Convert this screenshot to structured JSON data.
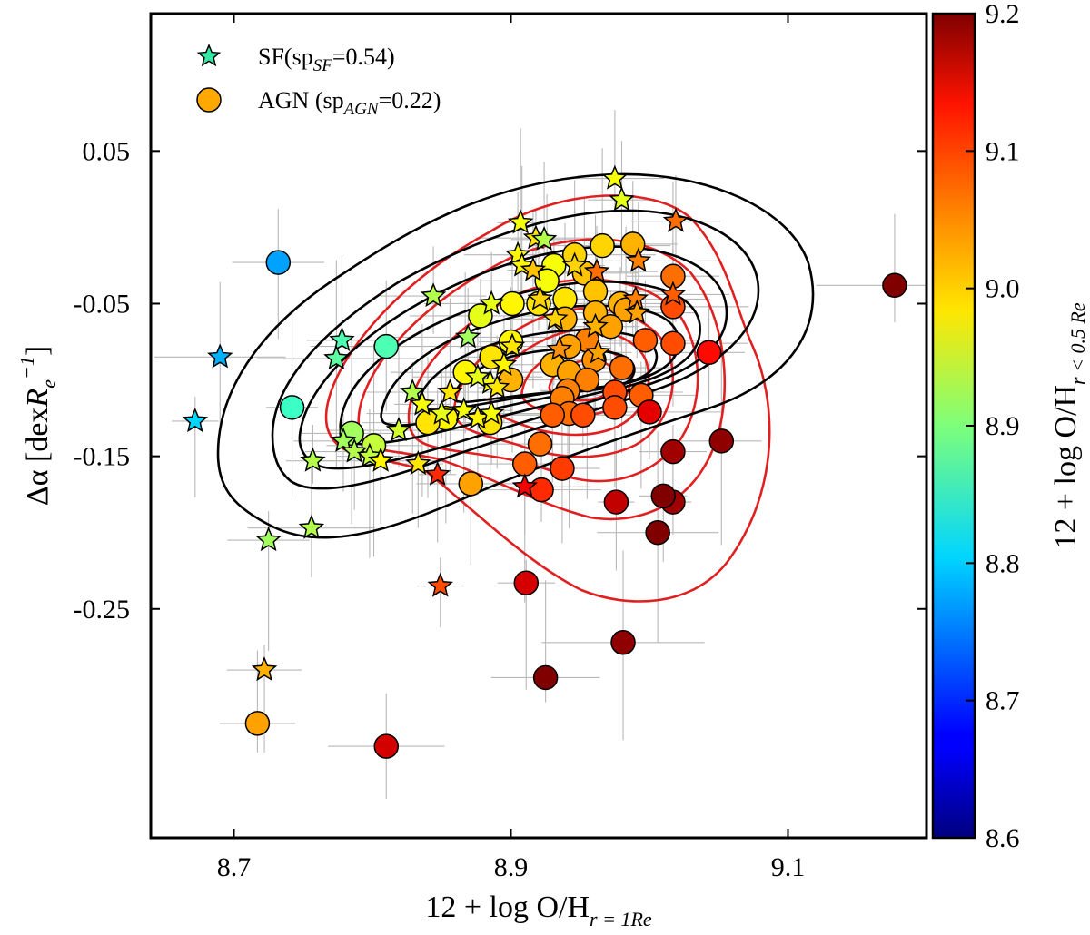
{
  "chart_data": {
    "type": "scatter",
    "xlabel": {
      "main": "12 + log O/H",
      "sub": "r = 1Re"
    },
    "ylabel": {
      "main": "Δα [dex",
      "symbol": "R",
      "sub": "e",
      "sup": "−1",
      "close": "]"
    },
    "xlim": [
      8.64,
      9.2
    ],
    "ylim": [
      -0.4,
      0.14
    ],
    "xticks": [
      8.7,
      8.9,
      9.1
    ],
    "xtick_labels": [
      "8.7",
      "8.9",
      "9.1"
    ],
    "yticks": [
      0.05,
      -0.05,
      -0.15,
      -0.25
    ],
    "ytick_labels": [
      "0.05",
      "-0.05",
      "-0.15",
      "-0.25"
    ],
    "colorbar": {
      "label": {
        "main": "12 + log O/H",
        "sub": "r < 0.5 Re"
      },
      "range": [
        8.6,
        9.2
      ],
      "ticks": [
        8.6,
        8.7,
        8.8,
        8.9,
        9.0,
        9.1,
        9.2
      ],
      "tick_labels": [
        "8.6",
        "8.7",
        "8.8",
        "8.9",
        "9.0",
        "9.1",
        "9.2"
      ],
      "colormap": "jet"
    },
    "legend": {
      "position": "top-left",
      "entries": [
        {
          "marker": "star",
          "color": "#37e8a6",
          "main": "SF(sp",
          "sub": "SF",
          "tail": "=0.54)"
        },
        {
          "marker": "circle",
          "color": "#ffa800",
          "main": "AGN (sp",
          "sub": "AGN",
          "tail": "=0.22)"
        }
      ]
    },
    "series": [
      {
        "name": "SF",
        "marker": "star",
        "points": [
          [
            8.975,
            0.032,
            8.97
          ],
          [
            8.98,
            0.018,
            8.96
          ],
          [
            8.907,
            0.003,
            8.97
          ],
          [
            9.019,
            0.004,
            9.06
          ],
          [
            8.918,
            -0.007,
            8.99
          ],
          [
            8.924,
            -0.008,
            8.93
          ],
          [
            8.905,
            -0.018,
            8.98
          ],
          [
            8.908,
            -0.025,
            8.98
          ],
          [
            8.916,
            -0.028,
            9.01
          ],
          [
            8.946,
            -0.025,
            9.0
          ],
          [
            8.962,
            -0.029,
            9.06
          ],
          [
            8.992,
            -0.022,
            9.05
          ],
          [
            8.844,
            -0.045,
            8.93
          ],
          [
            8.886,
            -0.05,
            8.96
          ],
          [
            8.921,
            -0.047,
            9.0
          ],
          [
            8.99,
            -0.047,
            9.05
          ],
          [
            9.017,
            -0.044,
            9.07
          ],
          [
            8.991,
            -0.056,
            9.03
          ],
          [
            8.932,
            -0.06,
            9.0
          ],
          [
            8.961,
            -0.065,
            9.02
          ],
          [
            8.869,
            -0.072,
            8.92
          ],
          [
            8.901,
            -0.078,
            8.99
          ],
          [
            8.935,
            -0.08,
            9.04
          ],
          [
            8.963,
            -0.082,
            9.03
          ],
          [
            8.778,
            -0.074,
            8.87
          ],
          [
            8.774,
            -0.086,
            8.88
          ],
          [
            8.69,
            -0.085,
            8.78
          ],
          [
            8.895,
            -0.09,
            8.98
          ],
          [
            8.885,
            -0.102,
            8.97
          ],
          [
            8.876,
            -0.098,
            8.96
          ],
          [
            8.89,
            -0.105,
            8.99
          ],
          [
            8.829,
            -0.108,
            8.93
          ],
          [
            8.856,
            -0.108,
            8.99
          ],
          [
            8.866,
            -0.12,
            8.97
          ],
          [
            8.85,
            -0.122,
            8.96
          ],
          [
            8.836,
            -0.116,
            8.97
          ],
          [
            8.876,
            -0.125,
            8.98
          ],
          [
            8.886,
            -0.122,
            8.97
          ],
          [
            8.672,
            -0.127,
            8.8
          ],
          [
            8.819,
            -0.133,
            8.95
          ],
          [
            8.779,
            -0.14,
            8.92
          ],
          [
            8.787,
            -0.147,
            8.93
          ],
          [
            8.798,
            -0.15,
            8.94
          ],
          [
            8.757,
            -0.153,
            8.93
          ],
          [
            8.806,
            -0.153,
            8.98
          ],
          [
            8.833,
            -0.155,
            8.99
          ],
          [
            8.847,
            -0.162,
            9.1
          ],
          [
            8.91,
            -0.17,
            9.13
          ],
          [
            8.756,
            -0.197,
            8.93
          ],
          [
            8.725,
            -0.205,
            8.92
          ],
          [
            8.849,
            -0.235,
            9.08
          ],
          [
            8.722,
            -0.29,
            9.02
          ]
        ]
      },
      {
        "name": "AGN",
        "marker": "circle",
        "points": [
          [
            8.732,
            -0.023,
            8.77
          ],
          [
            8.81,
            -0.078,
            8.87
          ],
          [
            8.742,
            -0.118,
            8.86
          ],
          [
            8.785,
            -0.135,
            8.92
          ],
          [
            8.801,
            -0.143,
            8.94
          ],
          [
            8.988,
            -0.011,
            9.02
          ],
          [
            8.966,
            -0.012,
            9.0
          ],
          [
            8.946,
            -0.018,
            9.0
          ],
          [
            8.931,
            -0.025,
            8.97
          ],
          [
            8.953,
            -0.03,
            9.01
          ],
          [
            8.926,
            -0.035,
            8.97
          ],
          [
            9.017,
            -0.032,
            9.06
          ],
          [
            8.939,
            -0.047,
            8.99
          ],
          [
            8.961,
            -0.042,
            9.01
          ],
          [
            8.979,
            -0.05,
            9.02
          ],
          [
            8.901,
            -0.05,
            8.98
          ],
          [
            8.92,
            -0.05,
            8.99
          ],
          [
            8.961,
            -0.056,
            9.02
          ],
          [
            8.983,
            -0.054,
            9.03
          ],
          [
            9.017,
            -0.052,
            9.08
          ],
          [
            8.878,
            -0.058,
            8.96
          ],
          [
            8.939,
            -0.06,
            9.02
          ],
          [
            8.972,
            -0.065,
            9.03
          ],
          [
            8.955,
            -0.074,
            9.05
          ],
          [
            8.942,
            -0.078,
            9.03
          ],
          [
            8.997,
            -0.074,
            9.07
          ],
          [
            9.017,
            -0.076,
            9.08
          ],
          [
            8.9,
            -0.075,
            8.98
          ],
          [
            8.886,
            -0.085,
            8.99
          ],
          [
            8.96,
            -0.087,
            9.04
          ],
          [
            8.93,
            -0.09,
            9.02
          ],
          [
            8.98,
            -0.092,
            9.06
          ],
          [
            8.867,
            -0.095,
            8.98
          ],
          [
            8.942,
            -0.095,
            9.03
          ],
          [
            8.9,
            -0.1,
            9.02
          ],
          [
            8.955,
            -0.1,
            9.05
          ],
          [
            9.043,
            -0.082,
            9.12
          ],
          [
            8.941,
            -0.107,
            9.05
          ],
          [
            8.975,
            -0.108,
            9.08
          ],
          [
            8.994,
            -0.11,
            9.07
          ],
          [
            8.937,
            -0.112,
            9.05
          ],
          [
            8.975,
            -0.118,
            9.08
          ],
          [
            8.853,
            -0.125,
            8.98
          ],
          [
            8.84,
            -0.128,
            8.99
          ],
          [
            8.885,
            -0.128,
            8.99
          ],
          [
            8.942,
            -0.122,
            9.06
          ],
          [
            8.93,
            -0.123,
            9.07
          ],
          [
            8.952,
            -0.123,
            9.08
          ],
          [
            9.0,
            -0.121,
            9.14
          ],
          [
            9.017,
            -0.147,
            9.18
          ],
          [
            9.052,
            -0.14,
            9.19
          ],
          [
            8.921,
            -0.142,
            9.06
          ],
          [
            8.91,
            -0.155,
            9.07
          ],
          [
            8.937,
            -0.158,
            9.09
          ],
          [
            8.871,
            -0.168,
            9.03
          ],
          [
            8.922,
            -0.172,
            9.1
          ],
          [
            8.976,
            -0.18,
            9.16
          ],
          [
            9.017,
            -0.18,
            9.18
          ],
          [
            9.01,
            -0.176,
            9.2
          ],
          [
            9.006,
            -0.2,
            9.2
          ],
          [
            8.911,
            -0.233,
            9.15
          ],
          [
            8.981,
            -0.272,
            9.19
          ],
          [
            8.925,
            -0.295,
            9.2
          ],
          [
            8.717,
            -0.325,
            9.03
          ],
          [
            8.81,
            -0.34,
            9.15
          ],
          [
            9.177,
            -0.038,
            9.2
          ]
        ]
      }
    ]
  }
}
